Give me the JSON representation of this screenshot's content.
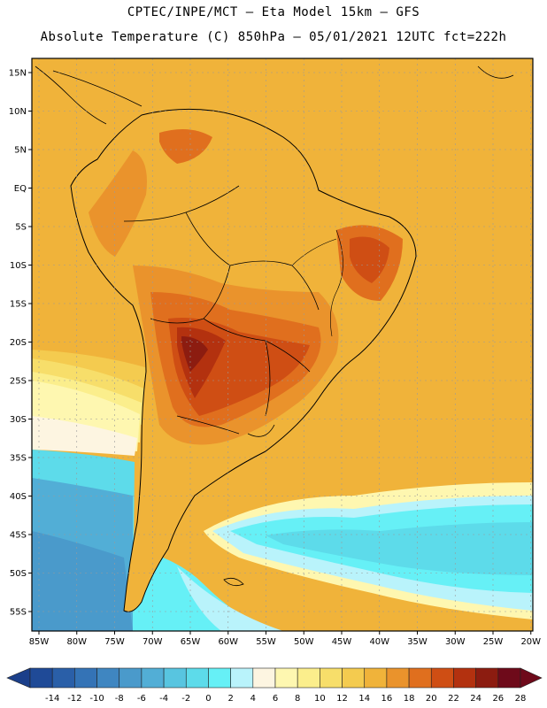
{
  "header": {
    "line1": "CPTEC/INPE/MCT –  Eta Model 15km – GFS",
    "line2": "Absolute Temperature (C) 850hPa – 05/01/2021 12UTC fct=222h"
  },
  "axes": {
    "lat_labels": [
      "15N",
      "10N",
      "5N",
      "EQ",
      "5S",
      "10S",
      "15S",
      "20S",
      "25S",
      "30S",
      "35S",
      "40S",
      "45S",
      "50S",
      "55S"
    ],
    "lon_labels": [
      "85W",
      "80W",
      "75W",
      "70W",
      "65W",
      "60W",
      "55W",
      "50W",
      "45W",
      "40W",
      "35W",
      "30W",
      "25W",
      "20W"
    ]
  },
  "colorbar": {
    "levels": [
      "-14",
      "-12",
      "-10",
      "-8",
      "-6",
      "-4",
      "-2",
      "0",
      "2",
      "4",
      "6",
      "8",
      "10",
      "12",
      "14",
      "16",
      "18",
      "20",
      "22",
      "24",
      "26",
      "28"
    ],
    "low_color": "#1b3f8a",
    "high_color": "#6e0a1a",
    "colors": [
      "#1f4a97",
      "#2a5fa8",
      "#3473b6",
      "#3f86c1",
      "#4a9acb",
      "#52aed6",
      "#58c5e0",
      "#5ddbea",
      "#66f0f6",
      "#b9f3fb",
      "#fdf5e1",
      "#fef7b0",
      "#fbee8c",
      "#f7de6a",
      "#f4cb4f",
      "#f0b33a",
      "#ea932c",
      "#e06f1e",
      "#cf4e14",
      "#b3310f",
      "#8c1c10",
      "#6e0a1a"
    ]
  }
}
